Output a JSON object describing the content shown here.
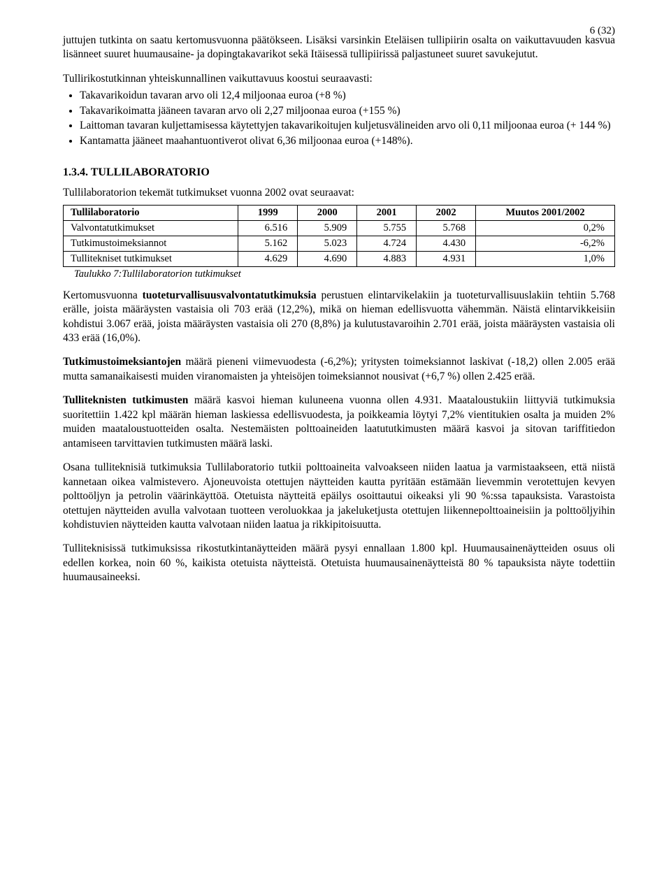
{
  "page_number": "6 (32)",
  "p1": "juttujen tutkinta on saatu kertomusvuonna päätökseen. Lisäksi varsinkin Eteläisen tullipiirin osalta on vaikuttavuuden kasvua lisänneet suuret huumausaine- ja dopingtakavarikot sekä Itäisessä tullipiirissä paljastuneet suuret savukejutut.",
  "p2": "Tullirikostutkinnan yhteiskunnallinen vaikuttavuus  koostui seuraavasti:",
  "bullets": [
    "Takavarikoidun tavaran arvo oli 12,4 miljoonaa euroa (+8 %)",
    "Takavarikoimatta jääneen tavaran arvo oli 2,27 miljoonaa euroa (+155 %)",
    "Laittoman tavaran kuljettamisessa käytettyjen takavarikoitujen kuljetusvälineiden arvo oli 0,11 miljoonaa euroa (+ 144 %)",
    "Kantamatta jääneet maahantuontiverot olivat 6,36 miljoonaa euroa (+148%)."
  ],
  "section_heading": "1.3.4. TULLILABORATORIO",
  "p3": "Tullilaboratorion tekemät tutkimukset vuonna 2002 ovat seuraavat:",
  "table": {
    "headers": [
      "Tullilaboratorio",
      "1999",
      "2000",
      "2001",
      "2002",
      "Muutos 2001/2002"
    ],
    "rows": [
      [
        "Valvontatutkimukset",
        "6.516",
        "5.909",
        "5.755",
        "5.768",
        "0,2%"
      ],
      [
        "Tutkimustoimeksiannot",
        "5.162",
        "5.023",
        "4.724",
        "4.430",
        "-6,2%"
      ],
      [
        "Tullitekniset tutkimukset",
        "4.629",
        "4.690",
        "4.883",
        "4.931",
        "1,0%"
      ]
    ]
  },
  "table_caption": "Taulukko 7:Tullilaboratorion tutkimukset",
  "p4a": "Kertomusvuonna ",
  "p4b": "tuoteturvallisuusvalvontatutkimuksia",
  "p4c": " perustuen elintarvikelakiin ja tuoteturvallisuuslakiin tehtiin 5.768 erälle, joista määräysten vastaisia oli 703 erää (12,2%), mikä on hieman edellisvuotta vähemmän. Näistä elintarvikkeisiin kohdistui 3.067 erää, joista määräysten vastaisia oli 270 (8,8%) ja kulutustavaroihin 2.701 erää, joista määräysten vastaisia oli 433 erää (16,0%).",
  "p5a": "Tutkimustoimeksiantojen",
  "p5b": " määrä pieneni  viimevuodesta (-6,2%); yritysten toimeksiannot laskivat (-18,2) ollen 2.005 erää mutta samanaikaisesti muiden viranomaisten ja yhteisöjen toimeksiannot nousivat (+6,7 %) ollen 2.425 erää.",
  "p6a": "Tulliteknisten tutkimusten",
  "p6b": " määrä kasvoi hieman kuluneena vuonna ollen 4.931. Maataloustukiin liittyviä tutkimuksia suoritettiin 1.422 kpl määrän hieman laskiessa edellisvuodesta, ja poikkeamia löytyi 7,2% vientitukien osalta ja muiden 2% muiden maataloustuotteiden osalta. Nestemäisten polttoaineiden laatututkimusten määrä kasvoi ja sitovan tariffitiedon antamiseen tarvittavien tutkimusten määrä laski.",
  "p7": "Osana tulliteknisiä tutkimuksia Tullilaboratorio tutkii polttoaineita valvoakseen niiden laatua ja varmistaakseen, että niistä kannetaan oikea valmistevero. Ajoneuvoista otettujen näytteiden kautta pyritään estämään lievemmin verotettujen kevyen polttoöljyn ja petrolin väärinkäyttöä. Otetuista näytteitä epäilys osoittautui oikeaksi yli 90 %:ssa tapauksista. Varastoista otettujen näytteiden avulla valvotaan tuotteen veroluokkaa ja jakeluketjusta otettujen liikennepolttoaineisiin ja polttoöljyihin kohdistuvien näytteiden kautta valvotaan niiden laatua ja rikkipitoisuutta.",
  "p8": "Tulliteknisissä tutkimuksissa rikostutkintanäytteiden määrä pysyi ennallaan 1.800 kpl. Huumausainenäytteiden osuus oli edellen korkea, noin 60 %, kaikista otetuista näytteistä. Otetuista huumausainenäytteistä 80 % tapauksista näyte todettiin huumausaineeksi."
}
